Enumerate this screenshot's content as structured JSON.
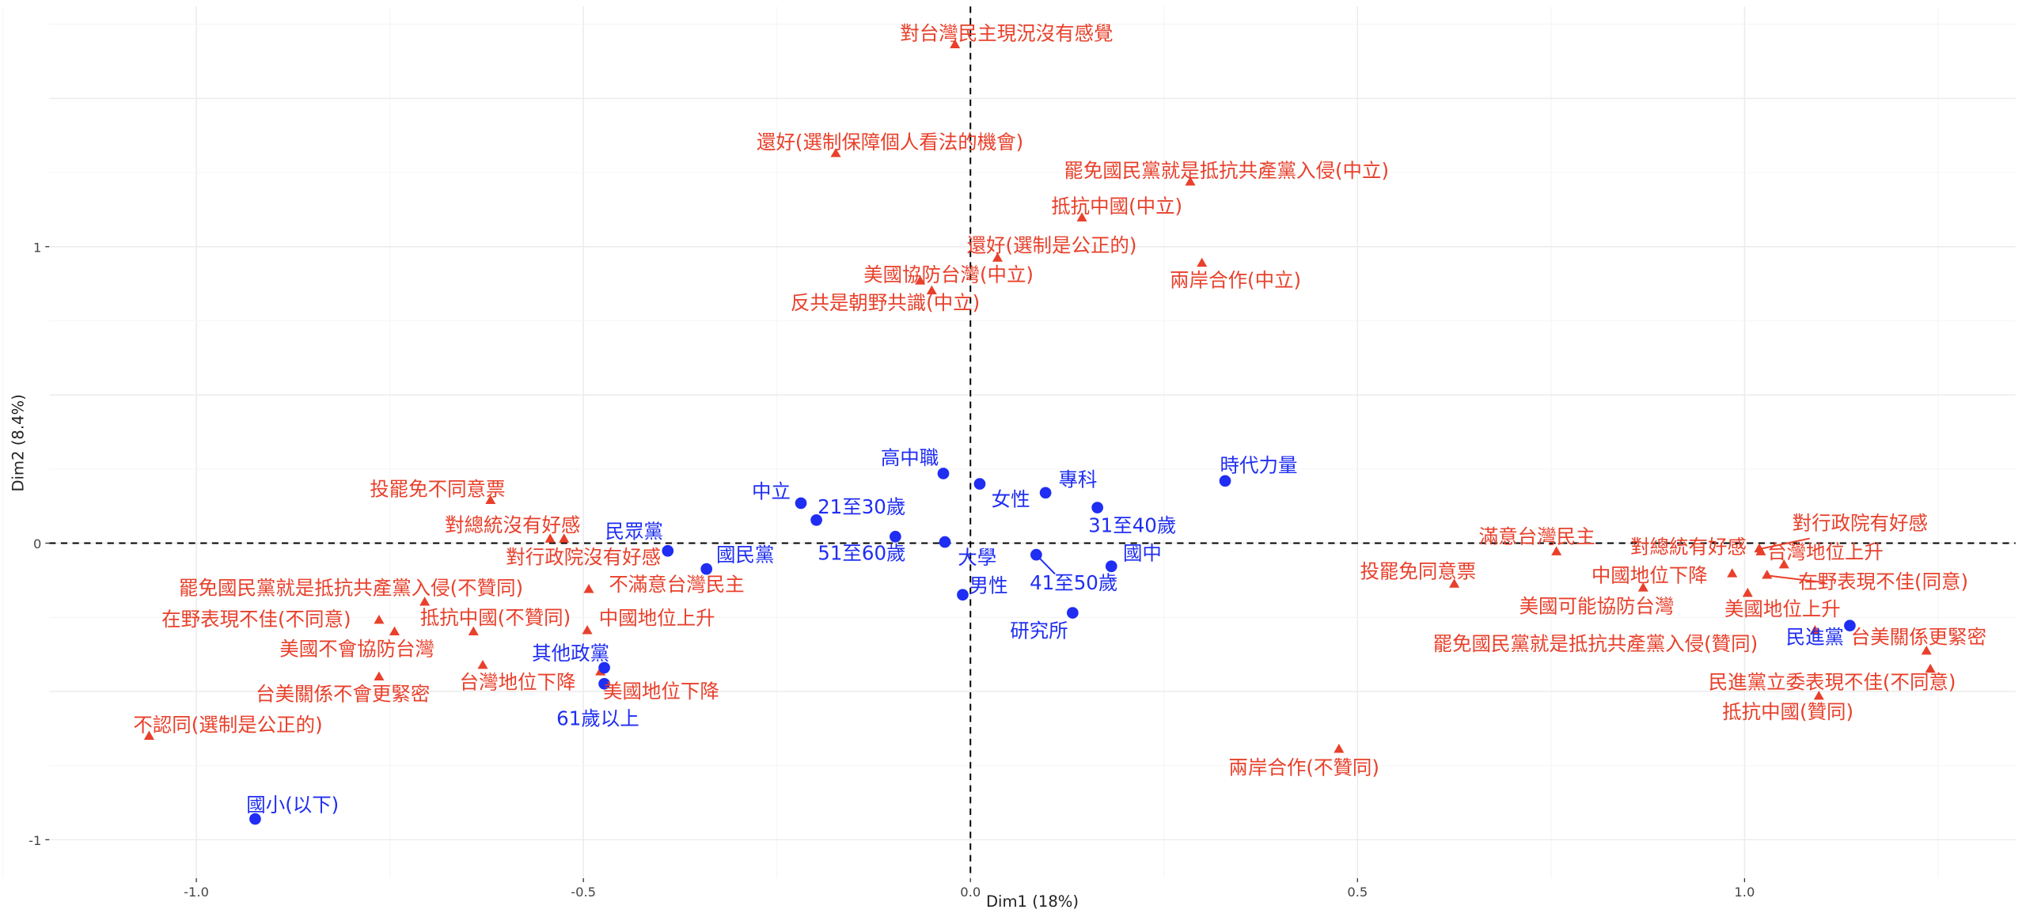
{
  "chart_data": {
    "type": "scatter",
    "title": "",
    "xlabel": "Dim1 (18%)",
    "ylabel": "Dim2 (8.4%)",
    "xlim": [
      -1.19,
      1.35
    ],
    "ylim": [
      -1.13,
      1.81
    ],
    "grid": true,
    "x_ticks": [
      -1.0,
      -0.5,
      0.0,
      0.5,
      1.0
    ],
    "x_tick_labels": [
      "-1.0",
      "-0.5",
      "0.0",
      "0.5",
      "1.0"
    ],
    "y_ticks": [
      1,
      0,
      -1
    ],
    "y_tick_labels": [
      "1",
      "0",
      "-1"
    ],
    "reference_lines": {
      "x": 0,
      "y": 0,
      "style": "dashed"
    },
    "colors": {
      "blue_points": "#1f2ef2",
      "red_points": "#e8402b"
    },
    "blue_points": [
      {
        "label": "國小(以下)",
        "x": -0.924,
        "y": -0.93
      },
      {
        "label": "高中職",
        "x": -0.035,
        "y": 0.235
      },
      {
        "label": "女性",
        "x": 0.012,
        "y": 0.2
      },
      {
        "label": "專科",
        "x": 0.097,
        "y": 0.17
      },
      {
        "label": "31至40歲",
        "x": 0.164,
        "y": 0.12
      },
      {
        "label": "時代力量",
        "x": 0.329,
        "y": 0.21
      },
      {
        "label": "中立",
        "x": -0.219,
        "y": 0.135
      },
      {
        "label": "21至30歲",
        "x": -0.199,
        "y": 0.078
      },
      {
        "label": "51至60歲",
        "x": -0.097,
        "y": 0.022
      },
      {
        "label": "大學",
        "x": -0.033,
        "y": 0.004
      },
      {
        "label": "男性",
        "x": -0.01,
        "y": -0.174
      },
      {
        "label": "41至50歲",
        "x": 0.085,
        "y": -0.039
      },
      {
        "label": "國中",
        "x": 0.182,
        "y": -0.078
      },
      {
        "label": "研究所",
        "x": 0.132,
        "y": -0.235
      },
      {
        "label": "民眾黨",
        "x": -0.391,
        "y": -0.026
      },
      {
        "label": "國民黨",
        "x": -0.341,
        "y": -0.087
      },
      {
        "label": "其他政黨",
        "x": -0.473,
        "y": -0.42
      },
      {
        "label": "61歲以上",
        "x": -0.473,
        "y": -0.474
      },
      {
        "label": "民進黨",
        "x": 1.136,
        "y": -0.278
      }
    ],
    "red_points": [
      {
        "label": "對台灣民主現況沒有感覺",
        "x": -0.02,
        "y": 1.68
      },
      {
        "label": "還好(選制保障個人看法的機會)",
        "x": -0.174,
        "y": 1.313
      },
      {
        "label": "罷免國民黨就是抵抗共產黨入侵(中立)",
        "x": 0.284,
        "y": 1.217
      },
      {
        "label": "抵抗中國(中立)",
        "x": 0.144,
        "y": 1.096
      },
      {
        "label": "還好(選制是公正的)",
        "x": 0.035,
        "y": 0.96
      },
      {
        "label": "美國協防台灣(中立)",
        "x": -0.065,
        "y": 0.883
      },
      {
        "label": "反共是朝野共識(中立)",
        "x": -0.05,
        "y": 0.85
      },
      {
        "label": "兩岸合作(中立)",
        "x": 0.299,
        "y": 0.943
      },
      {
        "label": "投罷免不同意票",
        "x": -0.62,
        "y": 0.143
      },
      {
        "label": "對總統沒有好感",
        "x": -0.543,
        "y": 0.013
      },
      {
        "label": "對行政院沒有好感",
        "x": -0.525,
        "y": 0.013
      },
      {
        "label": "罷免國民黨就是抵抗共產黨入侵(不贊同)",
        "x": -0.705,
        "y": -0.2
      },
      {
        "label": "在野表現不佳(不同意)",
        "x": -0.764,
        "y": -0.261
      },
      {
        "label": "抵抗中國(不贊同)",
        "x": -0.642,
        "y": -0.3
      },
      {
        "label": "美國不會協防台灣",
        "x": -0.744,
        "y": -0.3
      },
      {
        "label": "不滿意台灣民主",
        "x": -0.493,
        "y": -0.157
      },
      {
        "label": "中國地位上升",
        "x": -0.495,
        "y": -0.296
      },
      {
        "label": "台灣地位下降",
        "x": -0.63,
        "y": -0.413
      },
      {
        "label": "美國地位下降",
        "x": -0.478,
        "y": -0.435
      },
      {
        "label": "台美關係不會更緊密",
        "x": -0.764,
        "y": -0.452
      },
      {
        "label": "不認同(選制是公正的)",
        "x": -1.061,
        "y": -0.652
      },
      {
        "label": "滿意台灣民主",
        "x": 0.757,
        "y": -0.03
      },
      {
        "label": "投罷免同意票",
        "x": 0.625,
        "y": -0.139
      },
      {
        "label": "對總統有好感",
        "x": 1.021,
        "y": -0.03
      },
      {
        "label": "對行政院有好感",
        "x": 1.019,
        "y": -0.02
      },
      {
        "label": "台灣地位上升",
        "x": 1.051,
        "y": -0.074
      },
      {
        "label": "中國地位下降",
        "x": 0.984,
        "y": -0.104
      },
      {
        "label": "在野表現不佳(同意)",
        "x": 1.029,
        "y": -0.109
      },
      {
        "label": "美國可能協防台灣",
        "x": 0.869,
        "y": -0.152
      },
      {
        "label": "美國地位上升",
        "x": 1.004,
        "y": -0.17
      },
      {
        "label": "罷免國民黨就是抵抗共產黨入侵(贊同)",
        "x": 1.091,
        "y": -0.296
      },
      {
        "label": "台美關係更緊密",
        "x": 1.235,
        "y": -0.365
      },
      {
        "label": "民進黨立委表現不佳(不同意)",
        "x": 1.24,
        "y": -0.426
      },
      {
        "label": "抵抗中國(贊同)",
        "x": 1.096,
        "y": -0.517
      },
      {
        "label": "兩岸合作(不贊同)",
        "x": 0.476,
        "y": -0.696
      }
    ]
  }
}
